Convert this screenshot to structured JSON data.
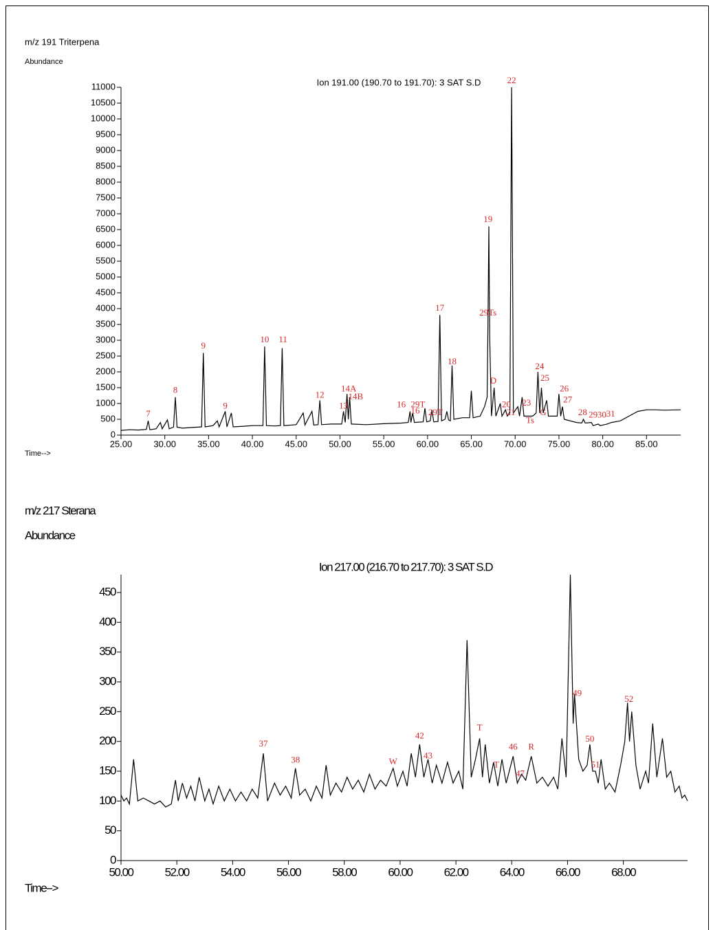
{
  "chart_data": [
    {
      "type": "line",
      "section_title": "m/z 191 Triterpena",
      "y_label": "Abundance",
      "title": "Ion 191.00 (190.70 to 191.70): 3 SAT S.D",
      "x_label": "Time-->",
      "color": "#000000",
      "annotation_color": "#d62728",
      "xlim": [
        25,
        88.9
      ],
      "ylim": [
        0,
        11000
      ],
      "xticks": [
        {
          "value": 25,
          "label": "25.00"
        },
        {
          "value": 30,
          "label": "30.00"
        },
        {
          "value": 35,
          "label": "35.00"
        },
        {
          "value": 40,
          "label": "40.00"
        },
        {
          "value": 45,
          "label": "45.00"
        },
        {
          "value": 50,
          "label": "50.00"
        },
        {
          "value": 55,
          "label": "55.00"
        },
        {
          "value": 60,
          "label": "60.00"
        },
        {
          "value": 65,
          "label": "65.00"
        },
        {
          "value": 70,
          "label": "70.00"
        },
        {
          "value": 75,
          "label": "75.00"
        },
        {
          "value": 80,
          "label": "80.00"
        },
        {
          "value": 85,
          "label": "85.00"
        }
      ],
      "yticks": [
        0,
        500,
        1000,
        1500,
        2000,
        2500,
        3000,
        3500,
        4000,
        4500,
        5000,
        5500,
        6000,
        6500,
        7000,
        7500,
        8000,
        8500,
        9000,
        9500,
        10000,
        10500,
        11000
      ],
      "x": [
        25,
        26,
        27,
        27.9,
        28.1,
        28.3,
        29,
        29.5,
        29.7,
        30.3,
        30.5,
        31.0,
        31.2,
        31.4,
        32,
        33,
        34.2,
        34.4,
        34.6,
        35.5,
        36.0,
        36.2,
        36.9,
        37.1,
        37.6,
        37.8,
        39,
        40,
        41.2,
        41.4,
        41.6,
        42.5,
        43.2,
        43.4,
        43.6,
        45,
        45.8,
        46,
        46.8,
        47,
        47.5,
        47.7,
        47.9,
        49,
        50.2,
        50.4,
        50.6,
        50.8,
        50.95,
        51.1,
        51.3,
        53,
        55,
        57,
        57.8,
        58.0,
        58.1,
        58.3,
        58.5,
        59.5,
        59.7,
        59.9,
        60.3,
        60.5,
        60.7,
        61.2,
        61.4,
        61.6,
        62.0,
        62.2,
        62.4,
        62.6,
        62.8,
        63.0,
        64,
        64.8,
        65.0,
        65.2,
        66,
        66.5,
        66.8,
        66.9,
        67.0,
        67.1,
        67.3,
        67.6,
        67.8,
        68.3,
        68.5,
        68.9,
        69.1,
        69.4,
        69.6,
        69.8,
        70.3,
        70.5,
        70.8,
        71,
        72,
        72.4,
        72.6,
        72.8,
        73.0,
        73.2,
        73.6,
        73.8,
        74.8,
        75.0,
        75.2,
        75.4,
        75.6,
        77,
        77.6,
        77.8,
        78.0,
        78.7,
        78.9,
        79.5,
        79.7,
        80.5,
        81,
        82,
        83,
        84,
        85,
        86,
        87,
        88.9
      ],
      "values": [
        150,
        170,
        160,
        180,
        450,
        170,
        200,
        400,
        200,
        480,
        200,
        250,
        1200,
        250,
        220,
        240,
        260,
        2600,
        260,
        300,
        450,
        260,
        750,
        260,
        700,
        260,
        280,
        300,
        300,
        2800,
        300,
        290,
        300,
        2750,
        300,
        330,
        700,
        320,
        750,
        320,
        330,
        1100,
        330,
        350,
        350,
        750,
        400,
        1300,
        500,
        1200,
        350,
        330,
        360,
        380,
        400,
        750,
        400,
        700,
        400,
        420,
        850,
        420,
        450,
        800,
        420,
        430,
        3800,
        450,
        500,
        750,
        480,
        450,
        2200,
        500,
        550,
        550,
        1400,
        550,
        600,
        900,
        1200,
        3500,
        6600,
        3000,
        600,
        1500,
        600,
        1000,
        600,
        800,
        600,
        700,
        11000,
        700,
        900,
        600,
        1200,
        600,
        600,
        700,
        2000,
        700,
        1500,
        700,
        1100,
        600,
        600,
        1300,
        600,
        900,
        500,
        400,
        380,
        500,
        380,
        400,
        300,
        350,
        300,
        350,
        400,
        450,
        600,
        750,
        800,
        800,
        790,
        800
      ],
      "annotations": [
        {
          "text": "7",
          "x": 28.1,
          "y": 650
        },
        {
          "text": "8",
          "x": 31.2,
          "y": 1400
        },
        {
          "text": "9",
          "x": 34.4,
          "y": 2800
        },
        {
          "text": "9",
          "x": 36.9,
          "y": 900
        },
        {
          "text": "10",
          "x": 41.4,
          "y": 3000
        },
        {
          "text": "11",
          "x": 43.5,
          "y": 3000
        },
        {
          "text": "12",
          "x": 47.7,
          "y": 1250
        },
        {
          "text": "13",
          "x": 50.4,
          "y": 900
        },
        {
          "text": "14A",
          "x": 51.0,
          "y": 1450
        },
        {
          "text": "14B",
          "x": 51.8,
          "y": 1200
        },
        {
          "text": "16",
          "x": 57.0,
          "y": 950
        },
        {
          "text": "29T",
          "x": 58.9,
          "y": 950
        },
        {
          "text": "16",
          "x": 58.6,
          "y": 750
        },
        {
          "text": "29T",
          "x": 60.9,
          "y": 700
        },
        {
          "text": "17",
          "x": 61.4,
          "y": 4000
        },
        {
          "text": "18",
          "x": 62.8,
          "y": 2300
        },
        {
          "text": "19",
          "x": 66.9,
          "y": 6800
        },
        {
          "text": "29Ts",
          "x": 66.9,
          "y": 3850
        },
        {
          "text": "D",
          "x": 67.5,
          "y": 1700
        },
        {
          "text": "20",
          "x": 69.0,
          "y": 950
        },
        {
          "text": "21",
          "x": 69.5,
          "y": 700
        },
        {
          "text": "22",
          "x": 69.6,
          "y": 11200
        },
        {
          "text": "23",
          "x": 71.3,
          "y": 1000
        },
        {
          "text": "Ts",
          "x": 71.7,
          "y": 450
        },
        {
          "text": "G",
          "x": 73.2,
          "y": 700
        },
        {
          "text": "24",
          "x": 72.8,
          "y": 2150
        },
        {
          "text": "25",
          "x": 73.4,
          "y": 1780
        },
        {
          "text": "26",
          "x": 75.6,
          "y": 1450
        },
        {
          "text": "27",
          "x": 76.0,
          "y": 1100
        },
        {
          "text": "28",
          "x": 77.7,
          "y": 700
        },
        {
          "text": "29",
          "x": 78.9,
          "y": 620
        },
        {
          "text": "30",
          "x": 79.9,
          "y": 620
        },
        {
          "text": "31",
          "x": 80.9,
          "y": 650
        }
      ]
    },
    {
      "type": "line",
      "section_title": "m/z 217 Sterana",
      "y_label": "Abundance",
      "title": "Ion 217.00 (216.70 to 217.70): 3 SAT S.D",
      "x_label": "Time-->",
      "color": "#000000",
      "annotation_color": "#d62728",
      "xlim": [
        50,
        70.3
      ],
      "ylim": [
        0,
        480
      ],
      "xticks": [
        {
          "value": 50,
          "label": "50.00"
        },
        {
          "value": 52,
          "label": "52.00"
        },
        {
          "value": 54,
          "label": "54.00"
        },
        {
          "value": 56,
          "label": "56.00"
        },
        {
          "value": 58,
          "label": "58.00"
        },
        {
          "value": 60,
          "label": "60.00"
        },
        {
          "value": 62,
          "label": "62.00"
        },
        {
          "value": 64,
          "label": "64.00"
        },
        {
          "value": 66,
          "label": "66.00"
        },
        {
          "value": 68,
          "label": "68.00"
        }
      ],
      "yticks": [
        0,
        50,
        100,
        150,
        200,
        250,
        300,
        350,
        400,
        450
      ],
      "x": [
        50.0,
        50.1,
        50.2,
        50.3,
        50.45,
        50.6,
        50.8,
        51.0,
        51.2,
        51.4,
        51.6,
        51.8,
        51.95,
        52.05,
        52.2,
        52.35,
        52.5,
        52.65,
        52.8,
        53.0,
        53.15,
        53.3,
        53.5,
        53.7,
        53.9,
        54.1,
        54.3,
        54.5,
        54.7,
        54.9,
        55.1,
        55.25,
        55.5,
        55.7,
        55.9,
        56.1,
        56.25,
        56.4,
        56.6,
        56.8,
        57.0,
        57.2,
        57.35,
        57.5,
        57.7,
        57.9,
        58.1,
        58.3,
        58.5,
        58.7,
        58.9,
        59.1,
        59.3,
        59.5,
        59.75,
        59.9,
        60.1,
        60.25,
        60.4,
        60.55,
        60.7,
        60.85,
        61.0,
        61.15,
        61.3,
        61.5,
        61.7,
        61.9,
        62.1,
        62.25,
        62.4,
        62.55,
        62.7,
        62.85,
        62.95,
        63.05,
        63.2,
        63.35,
        63.5,
        63.65,
        63.8,
        64.05,
        64.2,
        64.35,
        64.5,
        64.7,
        64.9,
        65.1,
        65.3,
        65.5,
        65.65,
        65.8,
        65.95,
        66.1,
        66.2,
        66.25,
        66.4,
        66.55,
        66.7,
        66.8,
        66.9,
        67.0,
        67.1,
        67.2,
        67.35,
        67.5,
        67.7,
        67.9,
        68.05,
        68.15,
        68.22,
        68.3,
        68.45,
        68.6,
        68.8,
        68.9,
        69.05,
        69.2,
        69.4,
        69.55,
        69.7,
        69.85,
        70.0,
        70.1,
        70.2,
        70.3
      ],
      "values": [
        110,
        100,
        105,
        95,
        170,
        100,
        105,
        100,
        95,
        100,
        90,
        95,
        135,
        100,
        130,
        105,
        125,
        100,
        140,
        100,
        120,
        95,
        125,
        100,
        120,
        100,
        115,
        100,
        120,
        105,
        180,
        100,
        130,
        110,
        125,
        105,
        155,
        110,
        120,
        100,
        125,
        105,
        160,
        110,
        130,
        115,
        140,
        120,
        135,
        115,
        145,
        120,
        135,
        125,
        155,
        125,
        150,
        125,
        180,
        140,
        195,
        140,
        170,
        130,
        160,
        130,
        165,
        130,
        150,
        120,
        370,
        140,
        170,
        205,
        140,
        195,
        130,
        165,
        125,
        170,
        130,
        175,
        130,
        145,
        135,
        175,
        130,
        140,
        125,
        140,
        120,
        205,
        140,
        480,
        230,
        280,
        170,
        150,
        160,
        195,
        150,
        150,
        130,
        170,
        120,
        130,
        115,
        160,
        200,
        265,
        200,
        250,
        160,
        120,
        150,
        130,
        230,
        140,
        205,
        140,
        150,
        115,
        125,
        105,
        110,
        100
      ],
      "annotations": [
        {
          "text": "37",
          "x": 55.1,
          "y": 195
        },
        {
          "text": "38",
          "x": 56.25,
          "y": 168
        },
        {
          "text": "W",
          "x": 59.75,
          "y": 165
        },
        {
          "text": "42",
          "x": 60.7,
          "y": 208
        },
        {
          "text": "43",
          "x": 61.0,
          "y": 175
        },
        {
          "text": "T",
          "x": 62.85,
          "y": 222
        },
        {
          "text": "T",
          "x": 63.45,
          "y": 160
        },
        {
          "text": "46",
          "x": 64.05,
          "y": 190
        },
        {
          "text": "47",
          "x": 64.3,
          "y": 145
        },
        {
          "text": "R",
          "x": 64.7,
          "y": 190
        },
        {
          "text": "49",
          "x": 66.35,
          "y": 280
        },
        {
          "text": "50",
          "x": 66.8,
          "y": 203
        },
        {
          "text": "51",
          "x": 67.0,
          "y": 160
        },
        {
          "text": "52",
          "x": 68.2,
          "y": 270
        }
      ]
    }
  ]
}
